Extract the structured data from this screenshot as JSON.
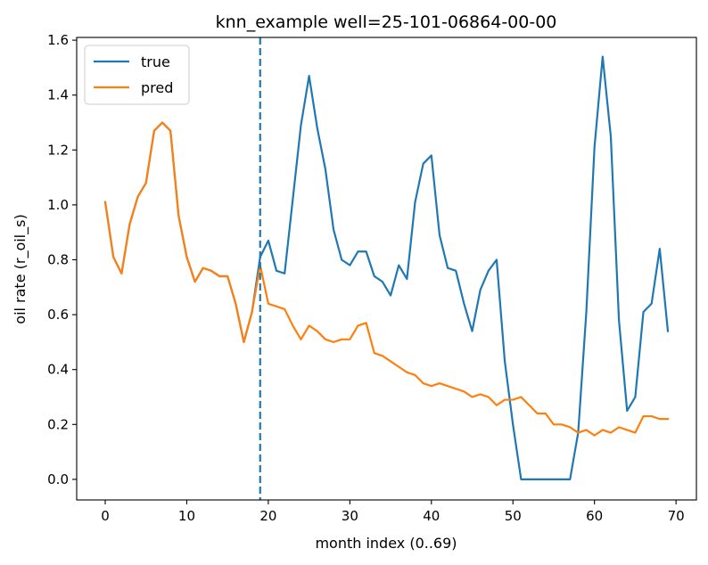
{
  "chart_data": {
    "type": "line",
    "title": "knn_example well=25-101-06864-00-00",
    "xlabel": "month index (0..69)",
    "ylabel": "oil rate (r_oil_s)",
    "xlim": [
      -3.5,
      72.5
    ],
    "ylim": [
      -0.075,
      1.61
    ],
    "xticks": [
      0,
      10,
      20,
      30,
      40,
      50,
      60,
      70
    ],
    "yticks": [
      0.0,
      0.2,
      0.4,
      0.6,
      0.8,
      1.0,
      1.2,
      1.4,
      1.6
    ],
    "xtick_labels": [
      "0",
      "10",
      "20",
      "30",
      "40",
      "50",
      "60",
      "70"
    ],
    "ytick_labels": [
      "0.0",
      "0.2",
      "0.4",
      "0.6",
      "0.8",
      "1.0",
      "1.2",
      "1.4",
      "1.6"
    ],
    "grid": false,
    "legend": "top-left",
    "vline": {
      "x": 19,
      "color": "#1f77b4",
      "style": "dashed"
    },
    "series": [
      {
        "name": "true",
        "color": "#1f77b4",
        "x": [
          0,
          1,
          2,
          3,
          4,
          5,
          6,
          7,
          8,
          9,
          10,
          11,
          12,
          13,
          14,
          15,
          16,
          17,
          18,
          19,
          20,
          21,
          22,
          23,
          24,
          25,
          26,
          27,
          28,
          29,
          30,
          31,
          32,
          33,
          34,
          35,
          36,
          37,
          38,
          39,
          40,
          41,
          42,
          43,
          44,
          45,
          46,
          47,
          48,
          49,
          50,
          51,
          52,
          53,
          54,
          55,
          56,
          57,
          58,
          59,
          60,
          61,
          62,
          63,
          64,
          65,
          66,
          67,
          68,
          69
        ],
        "y": [
          1.01,
          0.81,
          0.75,
          0.93,
          1.03,
          1.08,
          1.27,
          1.3,
          1.27,
          0.96,
          0.81,
          0.72,
          0.77,
          0.76,
          0.74,
          0.74,
          0.64,
          0.5,
          0.61,
          0.81,
          0.87,
          0.76,
          0.75,
          1.02,
          1.29,
          1.47,
          1.28,
          1.13,
          0.91,
          0.8,
          0.78,
          0.83,
          0.83,
          0.74,
          0.72,
          0.67,
          0.78,
          0.73,
          1.01,
          1.15,
          1.18,
          0.89,
          0.77,
          0.76,
          0.64,
          0.54,
          0.69,
          0.76,
          0.8,
          0.43,
          0.2,
          0.0,
          0.0,
          0.0,
          0.0,
          0.0,
          0.0,
          0.0,
          0.17,
          0.61,
          1.21,
          1.54,
          1.25,
          0.58,
          0.25,
          0.3,
          0.61,
          0.64,
          0.84,
          0.54
        ]
      },
      {
        "name": "pred",
        "color": "#ff7f0e",
        "x": [
          0,
          1,
          2,
          3,
          4,
          5,
          6,
          7,
          8,
          9,
          10,
          11,
          12,
          13,
          14,
          15,
          16,
          17,
          18,
          19,
          20,
          21,
          22,
          23,
          24,
          25,
          26,
          27,
          28,
          29,
          30,
          31,
          32,
          33,
          34,
          35,
          36,
          37,
          38,
          39,
          40,
          41,
          42,
          43,
          44,
          45,
          46,
          47,
          48,
          49,
          50,
          51,
          52,
          53,
          54,
          55,
          56,
          57,
          58,
          59,
          60,
          61,
          62,
          63,
          64,
          65,
          66,
          67,
          68,
          69
        ],
        "y": [
          1.01,
          0.81,
          0.75,
          0.93,
          1.03,
          1.08,
          1.27,
          1.3,
          1.27,
          0.96,
          0.81,
          0.72,
          0.77,
          0.76,
          0.74,
          0.74,
          0.64,
          0.5,
          0.61,
          0.78,
          0.64,
          0.63,
          0.62,
          0.56,
          0.51,
          0.56,
          0.54,
          0.51,
          0.5,
          0.51,
          0.51,
          0.56,
          0.57,
          0.46,
          0.45,
          0.43,
          0.41,
          0.39,
          0.38,
          0.35,
          0.34,
          0.35,
          0.34,
          0.33,
          0.32,
          0.3,
          0.31,
          0.3,
          0.27,
          0.29,
          0.29,
          0.3,
          0.27,
          0.24,
          0.24,
          0.2,
          0.2,
          0.19,
          0.17,
          0.18,
          0.16,
          0.18,
          0.17,
          0.19,
          0.18,
          0.17,
          0.23,
          0.23,
          0.22,
          0.22
        ]
      }
    ]
  }
}
